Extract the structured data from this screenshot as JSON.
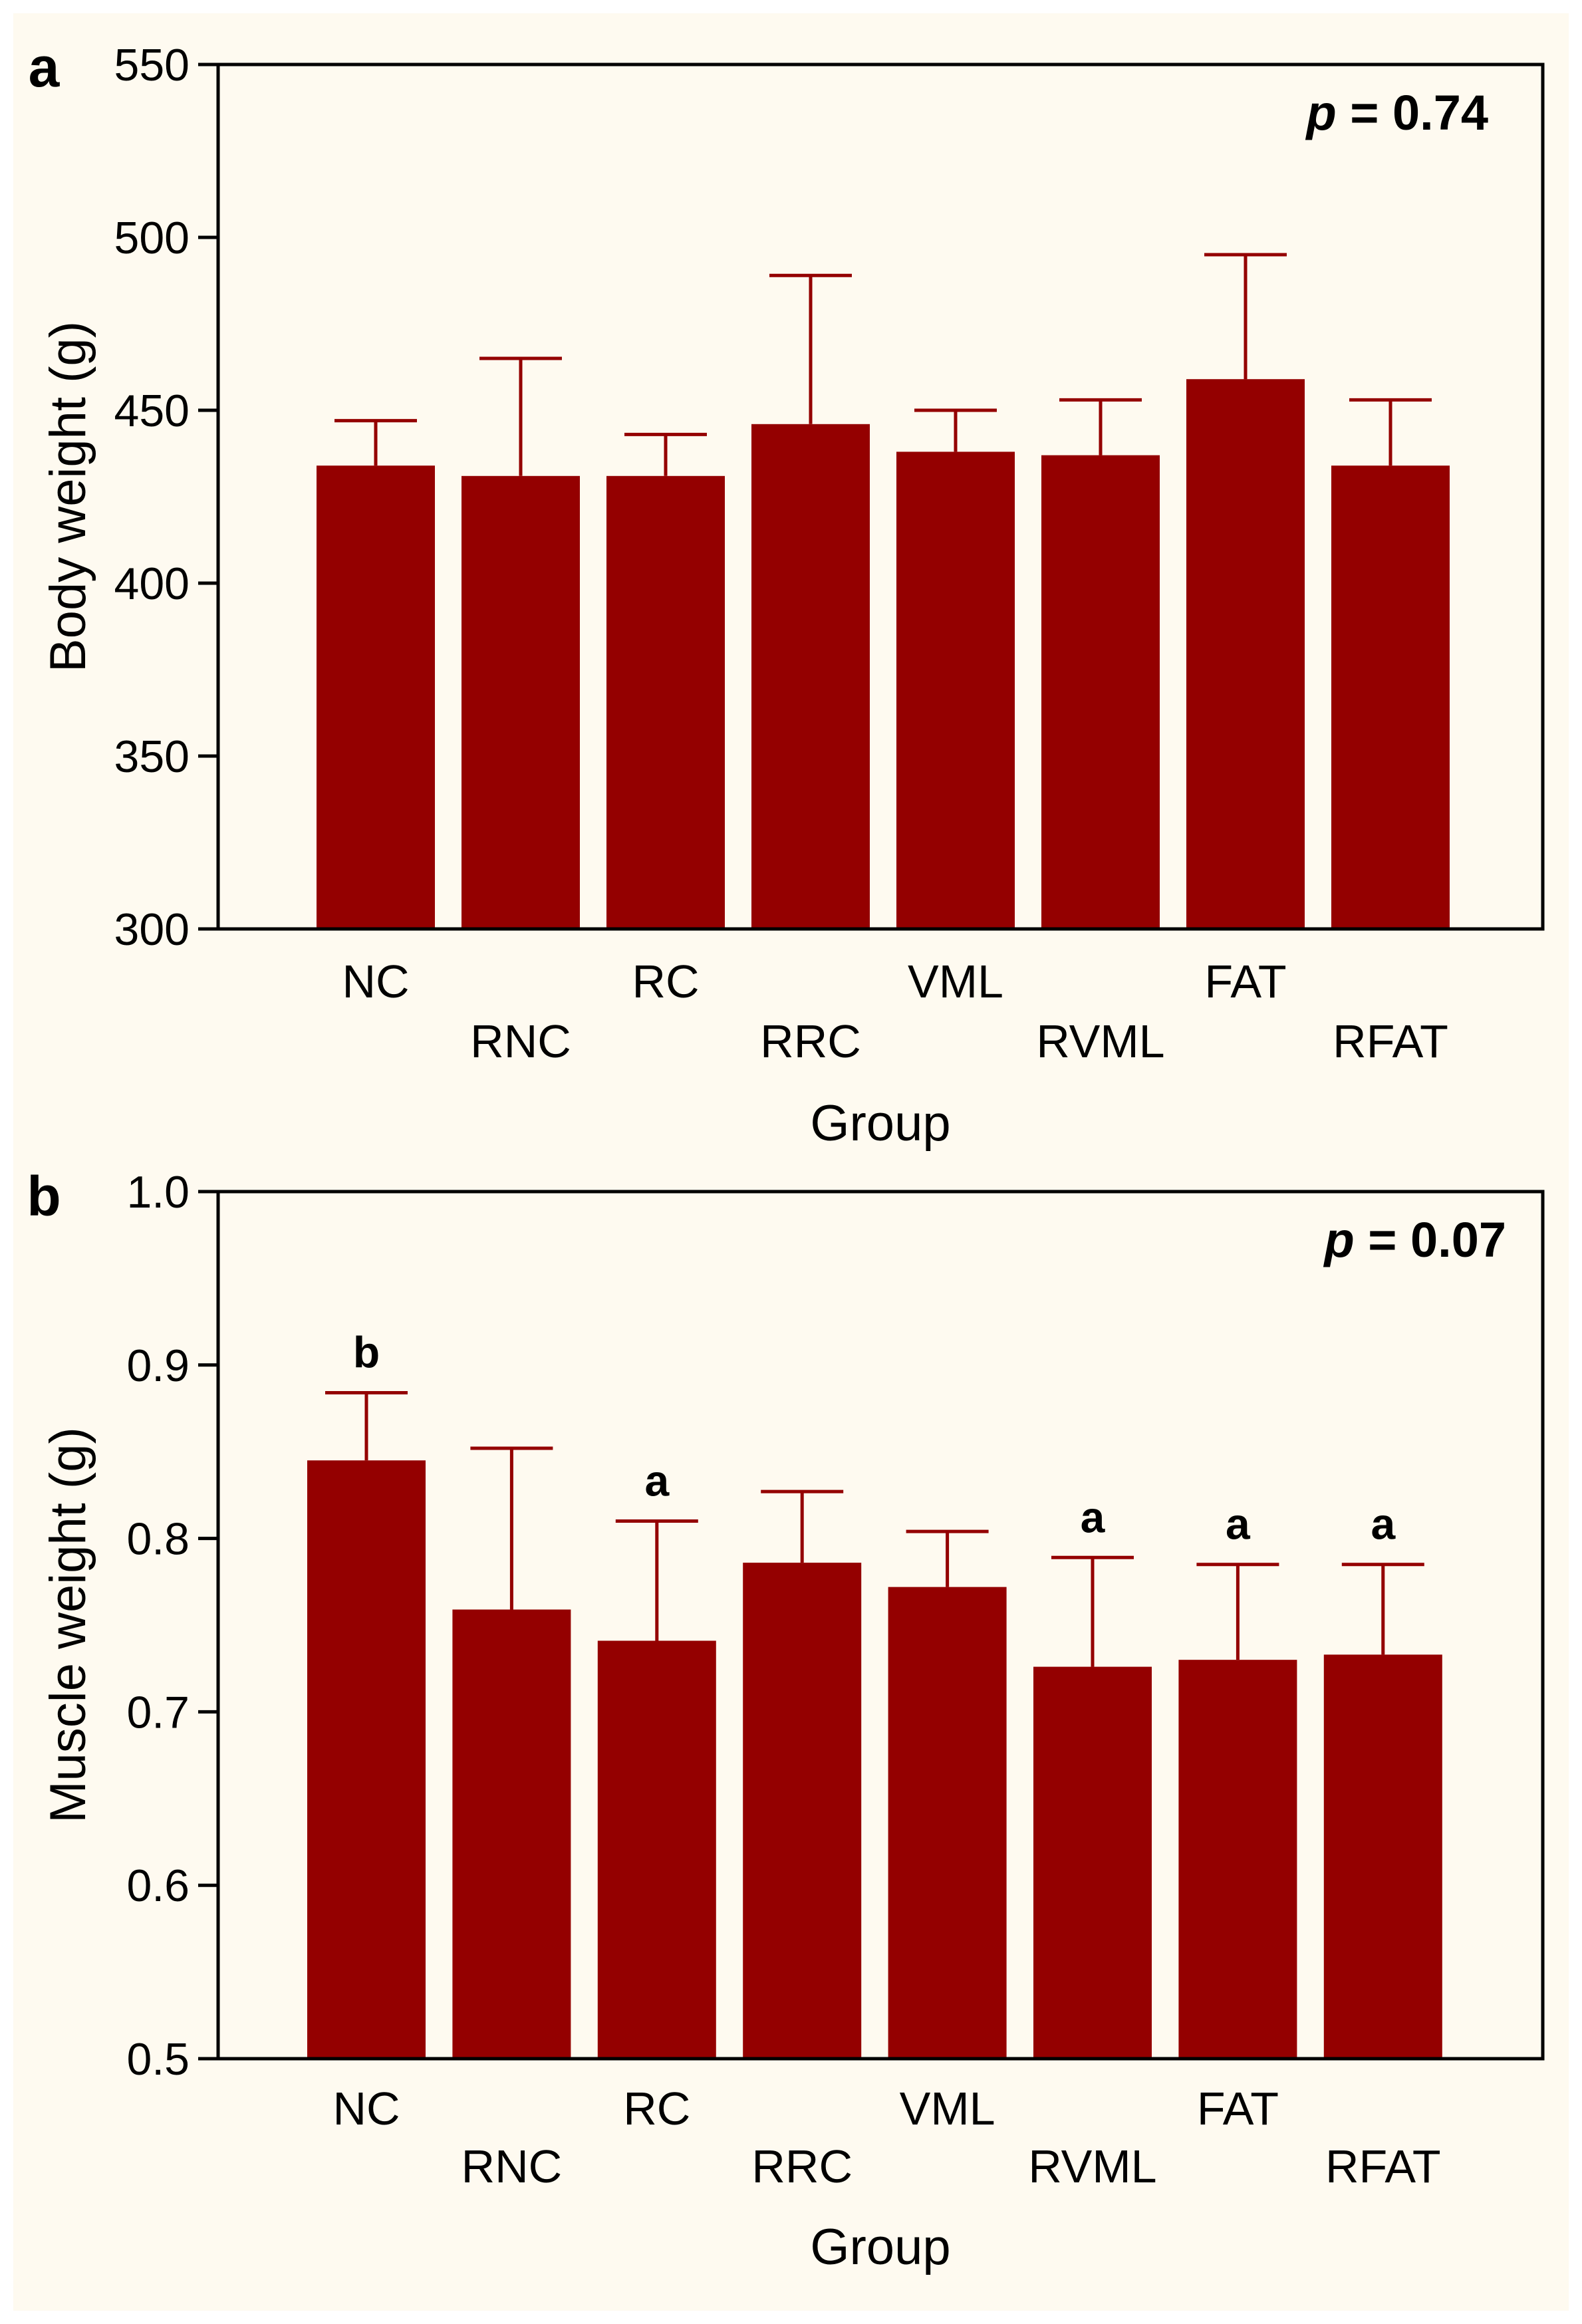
{
  "colors": {
    "bar": "#940000",
    "axis": "#000000",
    "background": "#fefaf0"
  },
  "chart_data": [
    {
      "type": "bar",
      "panel_label": "a",
      "title": "",
      "xlabel": "Group",
      "ylabel": "Body weight (g)",
      "categories": [
        "NC",
        "RNC",
        "RC",
        "RRC",
        "VML",
        "RVML",
        "FAT",
        "RFAT"
      ],
      "values": [
        434,
        431,
        431,
        446,
        438,
        437,
        459,
        434
      ],
      "error_upper": [
        447,
        465,
        443,
        489,
        450,
        453,
        495,
        453
      ],
      "significance_letters": [
        "",
        "",
        "",
        "",
        "",
        "",
        "",
        ""
      ],
      "annotation": "p = 0.74",
      "annotation_parts": [
        "p",
        " = 0.74"
      ],
      "ylim": [
        300,
        550
      ],
      "yticks": [
        "300",
        "350",
        "400",
        "450",
        "500",
        "550"
      ]
    },
    {
      "type": "bar",
      "panel_label": "b",
      "title": "",
      "xlabel": "Group",
      "ylabel": "Muscle weight (g)",
      "categories": [
        "NC",
        "RNC",
        "RC",
        "RRC",
        "VML",
        "RVML",
        "FAT",
        "RFAT"
      ],
      "values": [
        0.845,
        0.759,
        0.741,
        0.786,
        0.772,
        0.726,
        0.73,
        0.733
      ],
      "error_upper": [
        0.884,
        0.852,
        0.81,
        0.827,
        0.804,
        0.789,
        0.785,
        0.785
      ],
      "significance_letters": [
        "b",
        "",
        "a",
        "",
        "",
        "a",
        "a",
        "a"
      ],
      "annotation": "p = 0.07",
      "annotation_parts": [
        "p",
        " = 0.07"
      ],
      "ylim": [
        0.5,
        1.0
      ],
      "yticks": [
        "0.5",
        "0.6",
        "0.7",
        "0.8",
        "0.9",
        "1.0"
      ]
    }
  ]
}
